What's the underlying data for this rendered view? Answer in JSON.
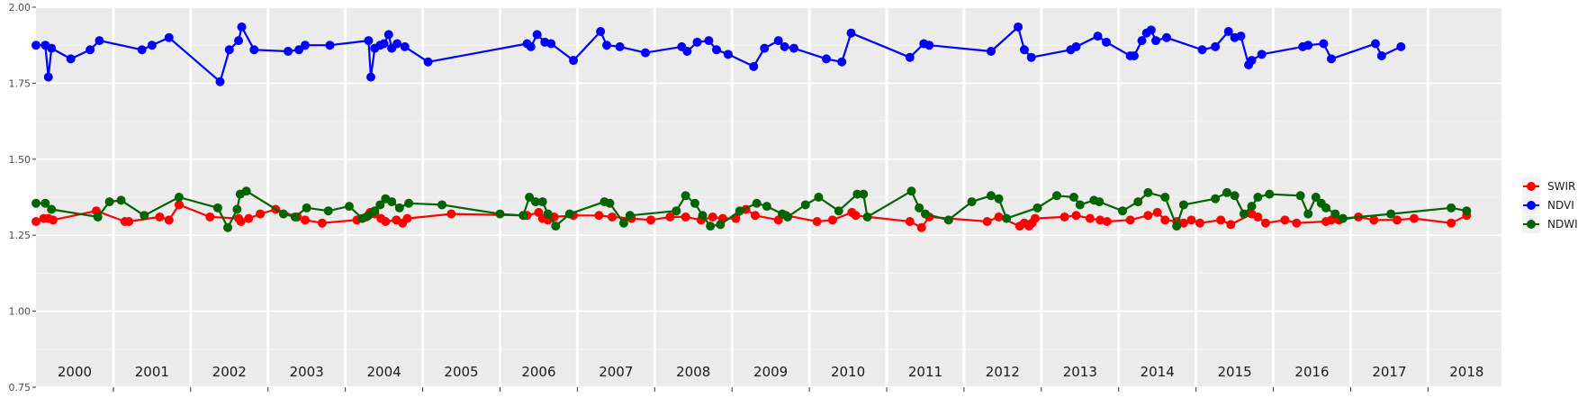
{
  "chart_data": {
    "type": "line",
    "title": "",
    "xlabel": "",
    "ylabel": "",
    "xlim": [
      2000.0,
      2018.95
    ],
    "ylim": [
      0.75,
      2.0
    ],
    "y_ticks": [
      "0.75",
      "1.00",
      "1.25",
      "1.50",
      "1.75",
      "2.00"
    ],
    "y_tick_values": [
      0.75,
      1.0,
      1.25,
      1.5,
      1.75,
      2.0
    ],
    "year_labels": [
      "2000",
      "2001",
      "2002",
      "2003",
      "2004",
      "2005",
      "2006",
      "2007",
      "2008",
      "2009",
      "2010",
      "2011",
      "2012",
      "2013",
      "2014",
      "2015",
      "2016",
      "2017",
      "2018"
    ],
    "year_label_y": 0.8,
    "grid": true,
    "legend": "right",
    "series": [
      {
        "name": "NDVI",
        "color": "#0000FF",
        "x": [
          2000.0,
          2000.12,
          2000.16,
          2000.2,
          2000.45,
          2000.7,
          2000.82,
          2001.37,
          2001.5,
          2001.72,
          2002.38,
          2002.5,
          2002.62,
          2002.66,
          2002.82,
          2003.26,
          2003.4,
          2003.48,
          2003.8,
          2004.3,
          2004.33,
          2004.38,
          2004.45,
          2004.5,
          2004.56,
          2004.6,
          2004.67,
          2004.77,
          2005.07,
          2006.35,
          2006.4,
          2006.48,
          2006.58,
          2006.66,
          2006.95,
          2007.3,
          2007.38,
          2007.55,
          2007.88,
          2008.35,
          2008.42,
          2008.55,
          2008.7,
          2008.8,
          2008.95,
          2009.28,
          2009.42,
          2009.6,
          2009.68,
          2009.8,
          2010.22,
          2010.42,
          2010.54,
          2011.3,
          2011.48,
          2011.55,
          2012.35,
          2012.7,
          2012.78,
          2012.87,
          2013.38,
          2013.45,
          2013.73,
          2013.84,
          2014.15,
          2014.2,
          2014.3,
          2014.36,
          2014.42,
          2014.48,
          2014.62,
          2015.08,
          2015.25,
          2015.42,
          2015.5,
          2015.58,
          2015.68,
          2015.72,
          2015.85,
          2016.38,
          2016.45,
          2016.65,
          2016.75,
          2017.32,
          2017.4,
          2017.65
        ],
        "values": [
          1.875,
          1.875,
          1.77,
          1.865,
          1.83,
          1.86,
          1.89,
          1.86,
          1.875,
          1.9,
          1.755,
          1.86,
          1.89,
          1.935,
          1.86,
          1.855,
          1.86,
          1.875,
          1.875,
          1.89,
          1.77,
          1.865,
          1.875,
          1.88,
          1.91,
          1.865,
          1.88,
          1.87,
          1.82,
          1.88,
          1.87,
          1.91,
          1.885,
          1.88,
          1.825,
          1.92,
          1.875,
          1.87,
          1.85,
          1.87,
          1.855,
          1.885,
          1.89,
          1.86,
          1.845,
          1.805,
          1.865,
          1.89,
          1.87,
          1.865,
          1.83,
          1.82,
          1.915,
          1.835,
          1.88,
          1.875,
          1.855,
          1.935,
          1.86,
          1.835,
          1.86,
          1.87,
          1.905,
          1.885,
          1.84,
          1.84,
          1.89,
          1.915,
          1.925,
          1.89,
          1.9,
          1.86,
          1.87,
          1.92,
          1.9,
          1.905,
          1.81,
          1.825,
          1.845,
          1.87,
          1.875,
          1.88,
          1.83,
          1.88,
          1.84,
          1.87
        ]
      },
      {
        "name": "SWIR",
        "color": "#FF0000",
        "x": [
          2000.0,
          2000.1,
          2000.16,
          2000.22,
          2000.78,
          2001.15,
          2001.2,
          2001.6,
          2001.72,
          2001.85,
          2002.25,
          2002.62,
          2002.65,
          2002.75,
          2002.9,
          2003.1,
          2003.38,
          2003.48,
          2003.7,
          2004.15,
          2004.27,
          2004.32,
          2004.38,
          2004.46,
          2004.52,
          2004.66,
          2004.74,
          2004.8,
          2005.37,
          2006.35,
          2006.5,
          2006.55,
          2006.62,
          2006.7,
          2006.95,
          2007.28,
          2007.45,
          2007.7,
          2007.95,
          2008.2,
          2008.4,
          2008.6,
          2008.75,
          2008.88,
          2009.05,
          2009.18,
          2009.3,
          2009.6,
          2009.7,
          2010.1,
          2010.3,
          2010.55,
          2010.6,
          2011.3,
          2011.45,
          2011.55,
          2012.3,
          2012.45,
          2012.72,
          2012.78,
          2012.84,
          2012.88,
          2012.92,
          2013.3,
          2013.45,
          2013.63,
          2013.76,
          2013.85,
          2014.15,
          2014.38,
          2014.5,
          2014.6,
          2014.75,
          2014.84,
          2014.94,
          2015.05,
          2015.32,
          2015.45,
          2015.72,
          2015.8,
          2015.9,
          2016.15,
          2016.3,
          2016.68,
          2016.75,
          2016.8,
          2016.85,
          2017.1,
          2017.3,
          2017.6,
          2017.82,
          2018.3,
          2018.5
        ],
        "values": [
          1.295,
          1.305,
          1.305,
          1.3,
          1.33,
          1.295,
          1.295,
          1.31,
          1.3,
          1.35,
          1.31,
          1.305,
          1.295,
          1.305,
          1.32,
          1.335,
          1.31,
          1.3,
          1.29,
          1.3,
          1.31,
          1.325,
          1.32,
          1.305,
          1.295,
          1.3,
          1.29,
          1.305,
          1.32,
          1.315,
          1.325,
          1.305,
          1.3,
          1.31,
          1.315,
          1.315,
          1.31,
          1.305,
          1.3,
          1.31,
          1.31,
          1.3,
          1.31,
          1.305,
          1.305,
          1.335,
          1.315,
          1.3,
          1.315,
          1.295,
          1.3,
          1.325,
          1.315,
          1.295,
          1.275,
          1.31,
          1.295,
          1.31,
          1.28,
          1.29,
          1.28,
          1.29,
          1.305,
          1.31,
          1.315,
          1.305,
          1.3,
          1.295,
          1.3,
          1.315,
          1.325,
          1.3,
          1.295,
          1.29,
          1.3,
          1.29,
          1.3,
          1.285,
          1.32,
          1.31,
          1.29,
          1.3,
          1.29,
          1.295,
          1.3,
          1.305,
          1.3,
          1.31,
          1.3,
          1.3,
          1.305,
          1.29,
          1.315
        ]
      },
      {
        "name": "NDWI",
        "color": "#006400",
        "x": [
          2000.0,
          2000.12,
          2000.2,
          2000.8,
          2000.95,
          2001.1,
          2001.4,
          2001.85,
          2002.35,
          2002.48,
          2002.6,
          2002.64,
          2002.72,
          2003.2,
          2003.35,
          2003.5,
          2003.78,
          2004.05,
          2004.22,
          2004.3,
          2004.38,
          2004.45,
          2004.52,
          2004.6,
          2004.7,
          2004.82,
          2005.25,
          2006.0,
          2006.3,
          2006.38,
          2006.46,
          2006.55,
          2006.62,
          2006.72,
          2006.9,
          2007.35,
          2007.42,
          2007.6,
          2007.68,
          2008.28,
          2008.4,
          2008.52,
          2008.62,
          2008.72,
          2008.85,
          2009.1,
          2009.32,
          2009.45,
          2009.65,
          2009.72,
          2009.95,
          2010.12,
          2010.38,
          2010.62,
          2010.7,
          2010.75,
          2011.32,
          2011.42,
          2011.5,
          2011.8,
          2012.1,
          2012.35,
          2012.45,
          2012.55,
          2012.95,
          2013.2,
          2013.42,
          2013.5,
          2013.68,
          2013.75,
          2014.05,
          2014.25,
          2014.38,
          2014.6,
          2014.75,
          2014.84,
          2015.25,
          2015.4,
          2015.5,
          2015.62,
          2015.72,
          2015.8,
          2015.95,
          2016.35,
          2016.45,
          2016.55,
          2016.62,
          2016.68,
          2016.8,
          2016.9,
          2017.52,
          2018.3,
          2018.5
        ],
        "values": [
          1.355,
          1.355,
          1.335,
          1.31,
          1.36,
          1.365,
          1.315,
          1.375,
          1.34,
          1.275,
          1.335,
          1.385,
          1.395,
          1.32,
          1.31,
          1.34,
          1.33,
          1.345,
          1.305,
          1.315,
          1.33,
          1.35,
          1.37,
          1.36,
          1.34,
          1.355,
          1.35,
          1.32,
          1.315,
          1.375,
          1.36,
          1.36,
          1.32,
          1.28,
          1.32,
          1.36,
          1.355,
          1.29,
          1.315,
          1.33,
          1.38,
          1.355,
          1.315,
          1.28,
          1.285,
          1.33,
          1.355,
          1.345,
          1.32,
          1.31,
          1.35,
          1.375,
          1.33,
          1.385,
          1.385,
          1.31,
          1.395,
          1.34,
          1.32,
          1.3,
          1.36,
          1.38,
          1.37,
          1.305,
          1.34,
          1.38,
          1.375,
          1.35,
          1.365,
          1.36,
          1.33,
          1.36,
          1.39,
          1.375,
          1.28,
          1.35,
          1.37,
          1.39,
          1.38,
          1.32,
          1.345,
          1.375,
          1.385,
          1.38,
          1.32,
          1.375,
          1.355,
          1.34,
          1.32,
          1.305,
          1.32,
          1.34,
          1.33
        ]
      }
    ]
  }
}
